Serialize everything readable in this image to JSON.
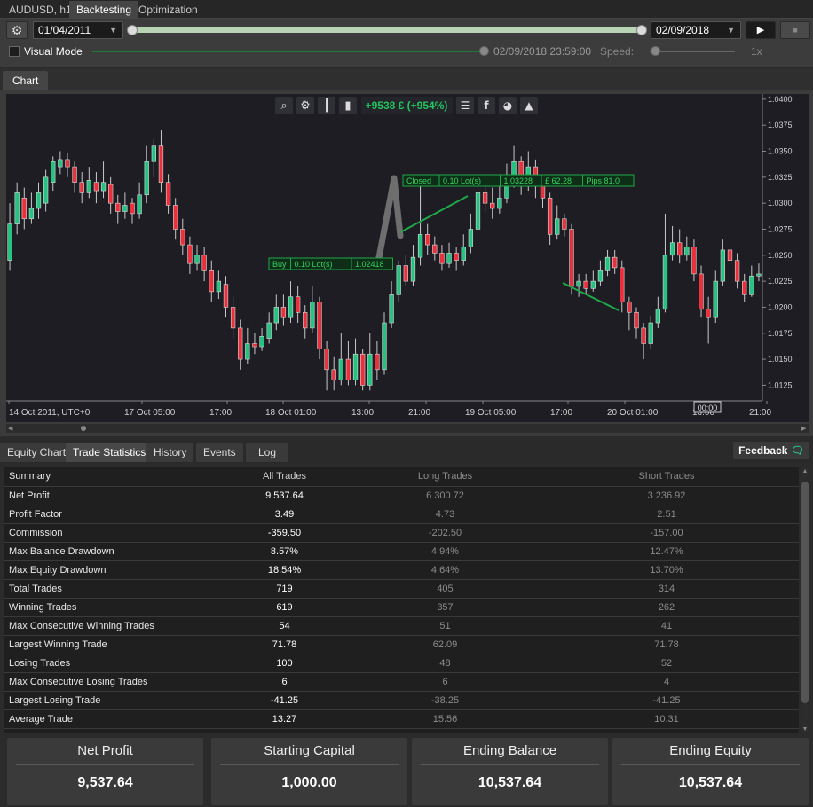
{
  "window_tabs": [
    {
      "label": "AUDUSD, h1"
    },
    {
      "label": "Backtesting"
    },
    {
      "label": "Optimization"
    }
  ],
  "toolbar": {
    "start_date": "01/04/2011",
    "end_date": "02/09/2018",
    "visual_mode_label": "Visual Mode",
    "current_time": "02/09/2018 23:59:00",
    "speed_label": "Speed:",
    "speed_value": "1x"
  },
  "chart_tab": {
    "label": "Chart"
  },
  "chart_overlay": {
    "profit_text": "+9538 £ (+954%)",
    "profit_color": "#22c55e",
    "buy_label": [
      "Buy",
      "0.10 Lot(s)",
      "1.02418"
    ],
    "closed_label": [
      "Closed",
      "0.10 Lot(s)",
      "1.03228",
      "£ 62.28",
      "Pips 81.0"
    ],
    "cursor_time": "00:00"
  },
  "chart_data": {
    "type": "candlestick",
    "symbol": "AUDUSD",
    "timeframe": "h1",
    "ylim": [
      1.011,
      1.0405
    ],
    "y_ticks": [
      "1.0400",
      "1.0375",
      "1.0350",
      "1.0325",
      "1.0300",
      "1.0275",
      "1.0250",
      "1.0225",
      "1.0200",
      "1.0175",
      "1.0150",
      "1.0125"
    ],
    "x_ticks": [
      "14 Oct 2011, UTC+0",
      "17 Oct 05:00",
      "17:00",
      "18 Oct 01:00",
      "13:00",
      "21:00",
      "19 Oct 05:00",
      "17:00",
      "20 Oct 01:00",
      "13:00",
      "21:00"
    ],
    "up_color": "#26c281",
    "down_color": "#e8313c",
    "candles": [
      [
        1.0245,
        1.028,
        1.03,
        1.0235
      ],
      [
        1.028,
        1.031,
        1.032,
        1.027
      ],
      [
        1.0305,
        1.0285,
        1.0315,
        1.0275
      ],
      [
        1.0285,
        1.0295,
        1.031,
        1.028
      ],
      [
        1.0295,
        1.031,
        1.032,
        1.0285
      ],
      [
        1.03,
        1.0325,
        1.0332,
        1.0292
      ],
      [
        1.032,
        1.034,
        1.0345,
        1.0312
      ],
      [
        1.0335,
        1.0342,
        1.035,
        1.0328
      ],
      [
        1.0342,
        1.0335,
        1.0348,
        1.0325
      ],
      [
        1.0335,
        1.032,
        1.034,
        1.031
      ],
      [
        1.032,
        1.031,
        1.033,
        1.03
      ],
      [
        1.031,
        1.0322,
        1.0335,
        1.0305
      ],
      [
        1.032,
        1.0312,
        1.033,
        1.03
      ],
      [
        1.0312,
        1.032,
        1.034,
        1.0305
      ],
      [
        1.0318,
        1.03,
        1.0325,
        1.029
      ],
      [
        1.03,
        1.0292,
        1.0308,
        1.028
      ],
      [
        1.0292,
        1.0298,
        1.031,
        1.0285
      ],
      [
        1.03,
        1.029,
        1.0305,
        1.028
      ],
      [
        1.029,
        1.0308,
        1.032,
        1.0285
      ],
      [
        1.0308,
        1.034,
        1.0355,
        1.03
      ],
      [
        1.034,
        1.0355,
        1.0362,
        1.0325
      ],
      [
        1.0355,
        1.032,
        1.037,
        1.031
      ],
      [
        1.032,
        1.0298,
        1.0328,
        1.029
      ],
      [
        1.0298,
        1.0275,
        1.0305,
        1.0265
      ],
      [
        1.0275,
        1.026,
        1.0285,
        1.025
      ],
      [
        1.026,
        1.0242,
        1.0268,
        1.0232
      ],
      [
        1.0242,
        1.025,
        1.026,
        1.0235
      ],
      [
        1.025,
        1.0235,
        1.0258,
        1.0225
      ],
      [
        1.0235,
        1.0215,
        1.0245,
        1.0205
      ],
      [
        1.0215,
        1.0225,
        1.0235,
        1.0208
      ],
      [
        1.0222,
        1.02,
        1.023,
        1.019
      ],
      [
        1.02,
        1.018,
        1.021,
        1.017
      ],
      [
        1.018,
        1.015,
        1.0188,
        1.014
      ],
      [
        1.015,
        1.0165,
        1.018,
        1.0145
      ],
      [
        1.0165,
        1.0162,
        1.0175,
        1.0155
      ],
      [
        1.0162,
        1.0172,
        1.018,
        1.0158
      ],
      [
        1.017,
        1.0185,
        1.0195,
        1.0165
      ],
      [
        1.0185,
        1.02,
        1.0212,
        1.0178
      ],
      [
        1.02,
        1.019,
        1.0212,
        1.0182
      ],
      [
        1.019,
        1.021,
        1.0225,
        1.0185
      ],
      [
        1.021,
        1.0195,
        1.022,
        1.0185
      ],
      [
        1.0195,
        1.018,
        1.0202,
        1.017
      ],
      [
        1.018,
        1.0205,
        1.022,
        1.0175
      ],
      [
        1.0205,
        1.016,
        1.021,
        1.015
      ],
      [
        1.016,
        1.014,
        1.0168,
        1.012
      ],
      [
        1.014,
        1.013,
        1.0152,
        1.012
      ],
      [
        1.013,
        1.015,
        1.0175,
        1.0125
      ],
      [
        1.015,
        1.013,
        1.0168,
        1.0125
      ],
      [
        1.013,
        1.0155,
        1.017,
        1.0125
      ],
      [
        1.0155,
        1.0125,
        1.016,
        1.012
      ],
      [
        1.0125,
        1.0155,
        1.0175,
        1.012
      ],
      [
        1.0155,
        1.014,
        1.0168,
        1.013
      ],
      [
        1.014,
        1.0185,
        1.0195,
        1.0135
      ],
      [
        1.0185,
        1.0212,
        1.0225,
        1.018
      ],
      [
        1.0212,
        1.024,
        1.0245,
        1.0205
      ],
      [
        1.024,
        1.0225,
        1.025,
        1.022
      ],
      [
        1.0225,
        1.0248,
        1.026,
        1.022
      ],
      [
        1.0248,
        1.027,
        1.032,
        1.024
      ],
      [
        1.027,
        1.026,
        1.028,
        1.025
      ],
      [
        1.026,
        1.0252,
        1.0268,
        1.0245
      ],
      [
        1.0252,
        1.0242,
        1.026,
        1.0235
      ],
      [
        1.0242,
        1.0252,
        1.0262,
        1.0238
      ],
      [
        1.0252,
        1.0245,
        1.0258,
        1.0235
      ],
      [
        1.0245,
        1.0258,
        1.027,
        1.024
      ],
      [
        1.0258,
        1.0275,
        1.029,
        1.0252
      ],
      [
        1.0275,
        1.031,
        1.0318,
        1.027
      ],
      [
        1.031,
        1.03,
        1.0322,
        1.0292
      ],
      [
        1.03,
        1.0295,
        1.0315,
        1.0285
      ],
      [
        1.0295,
        1.0305,
        1.0318,
        1.029
      ],
      [
        1.0305,
        1.032,
        1.0338,
        1.03
      ],
      [
        1.032,
        1.034,
        1.0355,
        1.0315
      ],
      [
        1.034,
        1.0318,
        1.0345,
        1.0308
      ],
      [
        1.0318,
        1.0335,
        1.035,
        1.0312
      ],
      [
        1.0335,
        1.0318,
        1.0342,
        1.0305
      ],
      [
        1.0318,
        1.0305,
        1.0325,
        1.0295
      ],
      [
        1.0305,
        1.027,
        1.031,
        1.026
      ],
      [
        1.027,
        1.0285,
        1.0298,
        1.0265
      ],
      [
        1.0285,
        1.0275,
        1.029,
        1.0268
      ],
      [
        1.0275,
        1.022,
        1.028,
        1.0212
      ],
      [
        1.022,
        1.0225,
        1.0232,
        1.021
      ],
      [
        1.0225,
        1.0218,
        1.0232,
        1.0212
      ],
      [
        1.0218,
        1.0225,
        1.0235,
        1.0215
      ],
      [
        1.0225,
        1.0235,
        1.0245,
        1.022
      ],
      [
        1.0235,
        1.0248,
        1.0255,
        1.023
      ],
      [
        1.0248,
        1.0238,
        1.0255,
        1.0232
      ],
      [
        1.0238,
        1.0205,
        1.0245,
        1.0195
      ],
      [
        1.0205,
        1.0195,
        1.021,
        1.0178
      ],
      [
        1.0195,
        1.018,
        1.02,
        1.017
      ],
      [
        1.018,
        1.0165,
        1.0185,
        1.015
      ],
      [
        1.0165,
        1.0185,
        1.0192,
        1.016
      ],
      [
        1.0185,
        1.0198,
        1.021,
        1.018
      ],
      [
        1.0198,
        1.025,
        1.029,
        1.0195
      ],
      [
        1.025,
        1.0262,
        1.0278,
        1.0245
      ],
      [
        1.0262,
        1.025,
        1.0275,
        1.0242
      ],
      [
        1.025,
        1.0258,
        1.0268,
        1.0245
      ],
      [
        1.0258,
        1.0232,
        1.0265,
        1.0225
      ],
      [
        1.0232,
        1.0198,
        1.024,
        1.019
      ],
      [
        1.0198,
        1.019,
        1.021,
        1.0165
      ],
      [
        1.019,
        1.0225,
        1.0235,
        1.0185
      ],
      [
        1.0225,
        1.0255,
        1.0265,
        1.022
      ],
      [
        1.0255,
        1.0245,
        1.0262,
        1.0238
      ],
      [
        1.0245,
        1.0225,
        1.0252,
        1.0218
      ],
      [
        1.0225,
        1.0212,
        1.0232,
        1.0205
      ],
      [
        1.0212,
        1.023,
        1.024,
        1.021
      ],
      [
        1.023,
        1.0232,
        1.0242,
        1.0225
      ]
    ]
  },
  "bottom_tabs": [
    {
      "label": "Equity Chart"
    },
    {
      "label": "Trade Statistics"
    },
    {
      "label": "History"
    },
    {
      "label": "Events"
    },
    {
      "label": "Log"
    }
  ],
  "feedback": {
    "label": "Feedback"
  },
  "stats": {
    "headers": [
      "Summary",
      "All Trades",
      "Long Trades",
      "Short Trades"
    ],
    "rows": [
      [
        "Net Profit",
        "9 537.64",
        "6 300.72",
        "3 236.92"
      ],
      [
        "Profit Factor",
        "3.49",
        "4.73",
        "2.51"
      ],
      [
        "Commission",
        "-359.50",
        "-202.50",
        "-157.00"
      ],
      [
        "Max Balance Drawdown",
        "8.57%",
        "4.94%",
        "12.47%"
      ],
      [
        "Max Equity Drawdown",
        "18.54%",
        "4.64%",
        "13.70%"
      ],
      [
        "Total Trades",
        "719",
        "405",
        "314"
      ],
      [
        "Winning Trades",
        "619",
        "357",
        "262"
      ],
      [
        "Max Consecutive Winning Trades",
        "54",
        "51",
        "41"
      ],
      [
        "Largest Winning Trade",
        "71.78",
        "62.09",
        "71.78"
      ],
      [
        "Losing Trades",
        "100",
        "48",
        "52"
      ],
      [
        "Max Consecutive Losing Trades",
        "6",
        "6",
        "4"
      ],
      [
        "Largest Losing Trade",
        "-41.25",
        "-38.25",
        "-41.25"
      ],
      [
        "Average Trade",
        "13.27",
        "15.56",
        "10.31"
      ]
    ]
  },
  "cards": [
    {
      "title": "Net Profit",
      "value": "9,537.64"
    },
    {
      "title": "Starting Capital",
      "value": "1,000.00"
    },
    {
      "title": "Ending Balance",
      "value": "10,537.64"
    },
    {
      "title": "Ending Equity",
      "value": "10,537.64"
    }
  ]
}
